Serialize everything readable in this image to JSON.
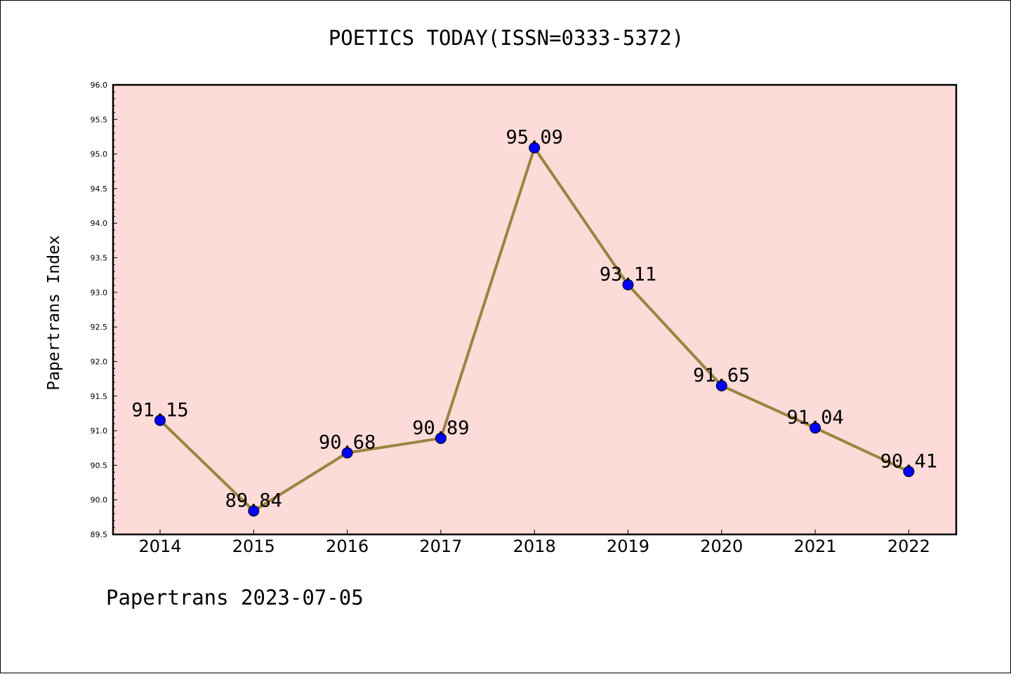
{
  "chart_data": {
    "type": "line",
    "title": "POETICS TODAY(ISSN=0333-5372)",
    "ylabel": "Papertrans Index",
    "xlabel": "",
    "categories": [
      "2014",
      "2015",
      "2016",
      "2017",
      "2018",
      "2019",
      "2020",
      "2021",
      "2022"
    ],
    "values": [
      91.15,
      89.84,
      90.68,
      90.89,
      95.09,
      93.11,
      91.65,
      91.04,
      90.41
    ],
    "data_labels": [
      "91.15",
      "89.84",
      "90.68",
      "90.89",
      "95.09",
      "93.11",
      "91.65",
      "91.04",
      "90.41"
    ],
    "ylim": [
      89.5,
      96.0
    ],
    "yticks": [
      "89.5",
      "90.0",
      "90.5",
      "91.0",
      "91.5",
      "92.0",
      "92.5",
      "93.0",
      "93.5",
      "94.0",
      "94.5",
      "95.0",
      "95.5",
      "96.0"
    ],
    "grid": false,
    "legend": "none",
    "colors": {
      "plot_background": "#fddbd8",
      "line": "#9b8440",
      "marker": "#0000ff"
    }
  },
  "footer": "Papertrans 2023-07-05"
}
